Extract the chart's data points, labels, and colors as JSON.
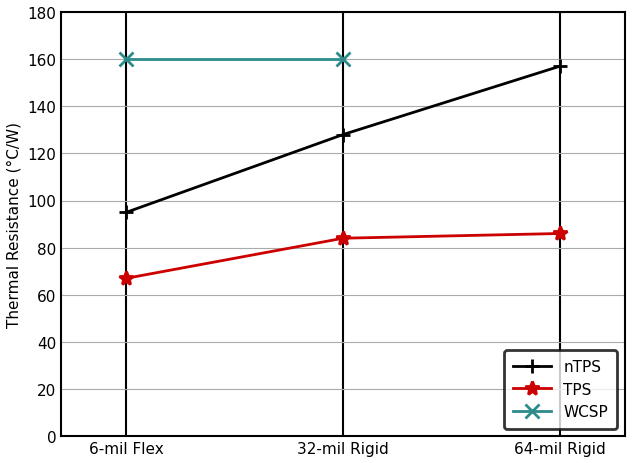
{
  "categories": [
    "6-mil Flex",
    "32-mil Rigid",
    "64-mil Rigid"
  ],
  "series": {
    "nTPS": {
      "values": [
        95,
        128,
        157
      ],
      "color": "#000000",
      "marker": "+"
    },
    "TPS": {
      "values": [
        67,
        84,
        86
      ],
      "color": "#cc0000",
      "marker": "*"
    },
    "WCSP": {
      "values": [
        160,
        160,
        null
      ],
      "color": "#2e8b8b",
      "marker": "x"
    }
  },
  "ylabel": "Thermal Resistance (°C/W)",
  "ylim": [
    0,
    180
  ],
  "yticks": [
    0,
    20,
    40,
    60,
    80,
    100,
    120,
    140,
    160,
    180
  ],
  "legend_loc": "lower right",
  "linewidth": 2.0,
  "markersize": 10,
  "grid": true,
  "bg_color": "#ffffff"
}
